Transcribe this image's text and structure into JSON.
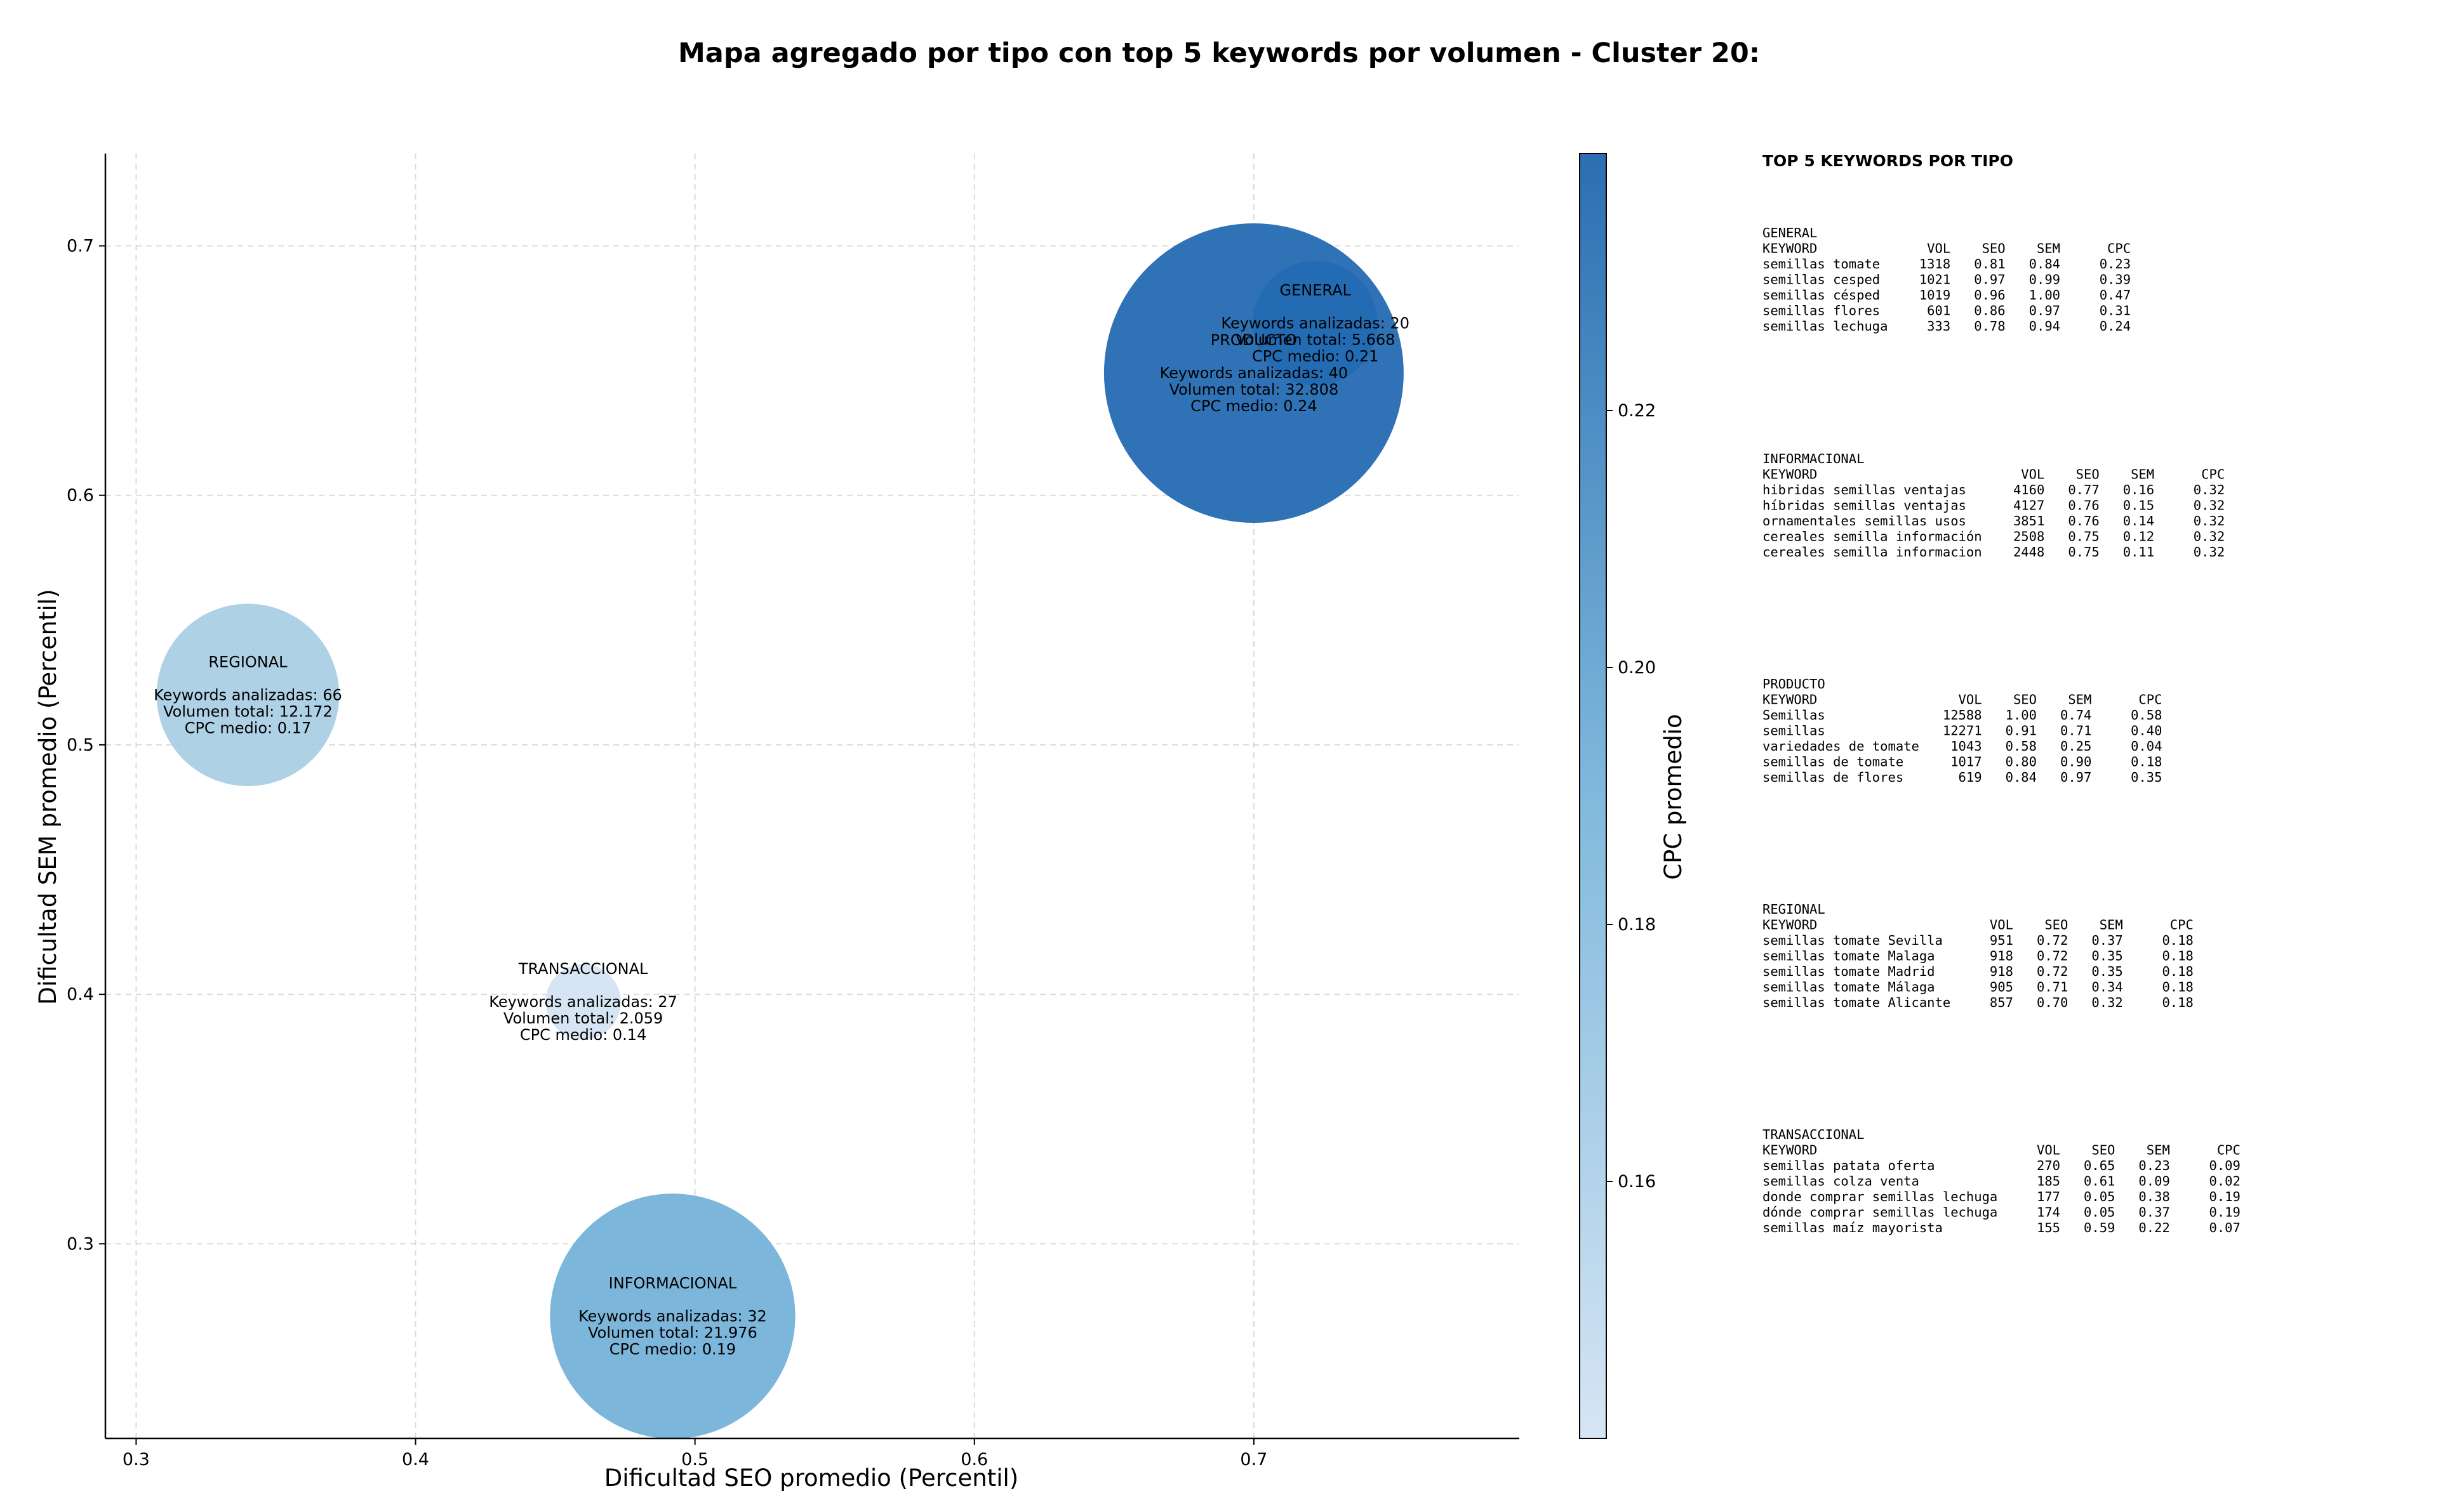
{
  "chart_data": {
    "type": "scatter",
    "title": "Mapa agregado por tipo con top 5 keywords por volumen - Cluster 20:",
    "xlabel": "Dificultad SEO promedio (Percentil)",
    "ylabel": "Dificultad SEM promedio (Percentil)",
    "xlim": [
      0.289,
      0.795
    ],
    "ylim": [
      0.222,
      0.737
    ],
    "xticks": [
      {
        "value": 0.3,
        "label": "0.3"
      },
      {
        "value": 0.4,
        "label": "0.4"
      },
      {
        "value": 0.5,
        "label": "0.5"
      },
      {
        "value": 0.6,
        "label": "0.6"
      },
      {
        "value": 0.7,
        "label": "0.7"
      }
    ],
    "yticks": [
      {
        "value": 0.3,
        "label": "0.3"
      },
      {
        "value": 0.4,
        "label": "0.4"
      },
      {
        "value": 0.5,
        "label": "0.5"
      },
      {
        "value": 0.6,
        "label": "0.6"
      },
      {
        "value": 0.7,
        "label": "0.7"
      }
    ],
    "grid": true,
    "colorbar": {
      "label": "CPC promedio",
      "min": 0.14,
      "max": 0.24,
      "ticks": [
        {
          "value": 0.16,
          "label": "0.16"
        },
        {
          "value": 0.18,
          "label": "0.18"
        },
        {
          "value": 0.2,
          "label": "0.20"
        },
        {
          "value": 0.22,
          "label": "0.22"
        }
      ],
      "color_low": "#c6dbef",
      "color_mid": "#6baed6",
      "color_high": "#2171b5"
    },
    "bubbles": [
      {
        "name": "GENERAL",
        "x": 0.722,
        "y": 0.669,
        "volume": 5668,
        "color": "#4f98c9",
        "lines": [
          "GENERAL",
          "",
          "Keywords analizadas: 20",
          "Volumen total: 5.668",
          "CPC medio: 0.21"
        ]
      },
      {
        "name": "PRODUCTO",
        "x": 0.7,
        "y": 0.649,
        "volume": 32808,
        "color": "#1e66b0",
        "lines": [
          "PRODUCTO",
          "",
          "Keywords analizadas: 40",
          "Volumen total: 32.808",
          "CPC medio: 0.24"
        ]
      },
      {
        "name": "REGIONAL",
        "x": 0.34,
        "y": 0.52,
        "volume": 12172,
        "color": "#a7cde4",
        "lines": [
          "REGIONAL",
          "",
          "Keywords analizadas: 66",
          "Volumen total: 12.172",
          "CPC medio: 0.17"
        ]
      },
      {
        "name": "TRANSACCIONAL",
        "x": 0.46,
        "y": 0.397,
        "volume": 2059,
        "color": "#d2e2f2",
        "lines": [
          "TRANSACCIONAL",
          "",
          "Keywords analizadas: 27",
          "Volumen total: 2.059",
          "CPC medio: 0.14"
        ]
      },
      {
        "name": "INFORMACIONAL",
        "x": 0.492,
        "y": 0.271,
        "volume": 21976,
        "color": "#72b0d8",
        "lines": [
          "INFORMACIONAL",
          "",
          "Keywords analizadas: 32",
          "Volumen total: 21.976",
          "CPC medio: 0.19"
        ]
      }
    ]
  },
  "side_panel": {
    "title": "TOP 5 KEYWORDS POR TIPO",
    "sections": [
      {
        "lines": [
          "GENERAL",
          "KEYWORD              VOL    SEO    SEM      CPC",
          "semillas tomate     1318   0.81   0.84     0.23",
          "semillas cesped     1021   0.97   0.99     0.39",
          "semillas césped     1019   0.96   1.00     0.47",
          "semillas flores      601   0.86   0.97     0.31",
          "semillas lechuga     333   0.78   0.94     0.24"
        ]
      },
      {
        "lines": [
          "INFORMACIONAL",
          "KEYWORD                          VOL    SEO    SEM      CPC",
          "hibridas semillas ventajas      4160   0.77   0.16     0.32",
          "híbridas semillas ventajas      4127   0.76   0.15     0.32",
          "ornamentales semillas usos      3851   0.76   0.14     0.32",
          "cereales semilla información    2508   0.75   0.12     0.32",
          "cereales semilla informacion    2448   0.75   0.11     0.32"
        ]
      },
      {
        "lines": [
          "PRODUCTO",
          "KEYWORD                  VOL    SEO    SEM      CPC",
          "Semillas               12588   1.00   0.74     0.58",
          "semillas               12271   0.91   0.71     0.40",
          "variedades de tomate    1043   0.58   0.25     0.04",
          "semillas de tomate      1017   0.80   0.90     0.18",
          "semillas de flores       619   0.84   0.97     0.35"
        ]
      },
      {
        "lines": [
          "REGIONAL",
          "KEYWORD                      VOL    SEO    SEM      CPC",
          "semillas tomate Sevilla      951   0.72   0.37     0.18",
          "semillas tomate Malaga       918   0.72   0.35     0.18",
          "semillas tomate Madrid       918   0.72   0.35     0.18",
          "semillas tomate Málaga       905   0.71   0.34     0.18",
          "semillas tomate Alicante     857   0.70   0.32     0.18"
        ]
      },
      {
        "lines": [
          "TRANSACCIONAL",
          "KEYWORD                            VOL    SEO    SEM      CPC",
          "semillas patata oferta             270   0.65   0.23     0.09",
          "semillas colza venta               185   0.61   0.09     0.02",
          "donde comprar semillas lechuga     177   0.05   0.38     0.19",
          "dónde comprar semillas lechuga     174   0.05   0.37     0.19",
          "semillas maíz mayorista            155   0.59   0.22     0.07"
        ]
      }
    ]
  }
}
